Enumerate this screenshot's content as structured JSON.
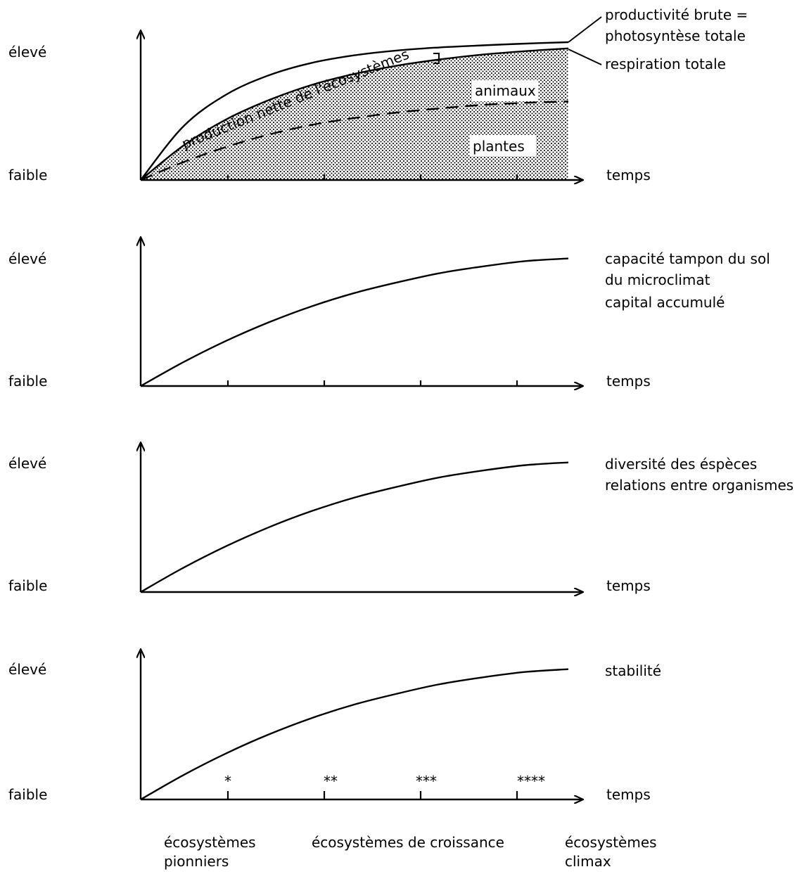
{
  "y_high_label": "élevé",
  "y_low_label": "faible",
  "x_label": "temps",
  "charts": [
    {
      "right_labels": [
        "productivité brute =",
        "photosyntèse totale",
        "respiration totale"
      ],
      "area_labels": {
        "production": "production nette de l'écosystèmes",
        "animals": "animaux",
        "plants": "plantes"
      }
    },
    {
      "right_labels": [
        "capacité tampon du sol",
        "du microclimat",
        "capital accumulé"
      ]
    },
    {
      "right_labels": [
        "diversité des éspèces",
        "relations entre organismes"
      ]
    },
    {
      "right_labels": [
        "stabilité"
      ],
      "stage_markers": [
        "*",
        "**",
        "***",
        "****"
      ]
    }
  ],
  "stages": {
    "pioneer": [
      "écosystèmes",
      "pionniers"
    ],
    "growth": "écosystèmes de croissance",
    "climax": [
      "écosystèmes",
      "climax"
    ]
  },
  "chart_data": [
    {
      "type": "area",
      "xlabel": "temps",
      "y_tick_labels": [
        "faible",
        "élevé"
      ],
      "series": [
        {
          "name": "productivité brute = photosyntèse totale",
          "x": [
            0,
            0.1,
            0.2,
            0.3,
            0.4,
            0.5,
            0.6,
            0.7,
            0.8,
            0.9,
            1.0
          ],
          "values": [
            0,
            0.39,
            0.62,
            0.76,
            0.85,
            0.905,
            0.94,
            0.962,
            0.977,
            0.99,
            1.0
          ]
        },
        {
          "name": "respiration totale",
          "x": [
            0,
            0.1,
            0.2,
            0.3,
            0.4,
            0.5,
            0.6,
            0.7,
            0.8,
            0.9,
            1.0
          ],
          "values": [
            0,
            0.25,
            0.44,
            0.58,
            0.69,
            0.77,
            0.83,
            0.875,
            0.91,
            0.935,
            0.955
          ]
        },
        {
          "name": "plantes",
          "x": [
            0,
            0.1,
            0.2,
            0.3,
            0.4,
            0.5,
            0.6,
            0.7,
            0.8,
            0.9,
            1.0
          ],
          "values": [
            0,
            0.13,
            0.24,
            0.33,
            0.4,
            0.45,
            0.49,
            0.52,
            0.545,
            0.56,
            0.57
          ]
        }
      ]
    },
    {
      "type": "line",
      "xlabel": "temps",
      "y_tick_labels": [
        "faible",
        "élevé"
      ],
      "series": [
        {
          "name": "capacité tampon du sol / du microclimat / capital accumulé",
          "x": [
            0,
            0.1,
            0.2,
            0.3,
            0.4,
            0.5,
            0.6,
            0.7,
            0.8,
            0.9,
            1.0
          ],
          "values": [
            0,
            0.18,
            0.34,
            0.48,
            0.6,
            0.7,
            0.78,
            0.85,
            0.9,
            0.94,
            0.96
          ]
        }
      ]
    },
    {
      "type": "line",
      "xlabel": "temps",
      "y_tick_labels": [
        "faible",
        "élevé"
      ],
      "series": [
        {
          "name": "diversité des éspèces / relations entre organismes",
          "x": [
            0,
            0.1,
            0.2,
            0.3,
            0.4,
            0.5,
            0.6,
            0.7,
            0.8,
            0.9,
            1.0
          ],
          "values": [
            0,
            0.18,
            0.34,
            0.48,
            0.6,
            0.7,
            0.78,
            0.85,
            0.9,
            0.94,
            0.96
          ]
        }
      ]
    },
    {
      "type": "line",
      "xlabel": "temps",
      "y_tick_labels": [
        "faible",
        "élevé"
      ],
      "series": [
        {
          "name": "stabilité",
          "x": [
            0,
            0.1,
            0.2,
            0.3,
            0.4,
            0.5,
            0.6,
            0.7,
            0.8,
            0.9,
            1.0
          ],
          "values": [
            0,
            0.18,
            0.34,
            0.48,
            0.6,
            0.7,
            0.78,
            0.85,
            0.9,
            0.94,
            0.96
          ]
        }
      ]
    }
  ]
}
